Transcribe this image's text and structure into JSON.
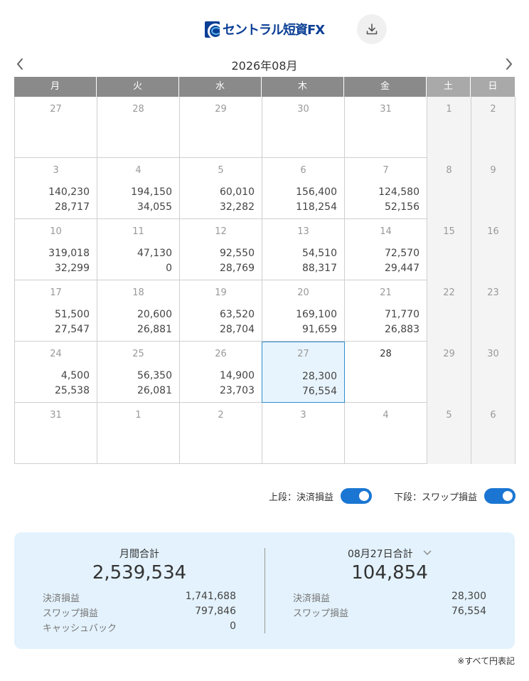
{
  "header": {
    "logo_text": "セントラル短資FX",
    "download_icon": "download-icon"
  },
  "calendar": {
    "month_title": "2026年08月",
    "prev_icon": "chevron-left-icon",
    "next_icon": "chevron-right-icon",
    "weekdays": [
      "月",
      "火",
      "水",
      "木",
      "金",
      "土",
      "日"
    ],
    "weeks": [
      [
        {
          "day": "27",
          "v1": "",
          "v2": ""
        },
        {
          "day": "28",
          "v1": "",
          "v2": ""
        },
        {
          "day": "29",
          "v1": "",
          "v2": ""
        },
        {
          "day": "30",
          "v1": "",
          "v2": ""
        },
        {
          "day": "31",
          "v1": "",
          "v2": ""
        },
        {
          "day": "1",
          "v1": "",
          "v2": ""
        },
        {
          "day": "2",
          "v1": "",
          "v2": ""
        }
      ],
      [
        {
          "day": "3",
          "v1": "140,230",
          "v2": "28,717"
        },
        {
          "day": "4",
          "v1": "194,150",
          "v2": "34,055"
        },
        {
          "day": "5",
          "v1": "60,010",
          "v2": "32,282"
        },
        {
          "day": "6",
          "v1": "156,400",
          "v2": "118,254"
        },
        {
          "day": "7",
          "v1": "124,580",
          "v2": "52,156"
        },
        {
          "day": "8",
          "v1": "",
          "v2": ""
        },
        {
          "day": "9",
          "v1": "",
          "v2": ""
        }
      ],
      [
        {
          "day": "10",
          "v1": "319,018",
          "v2": "32,299"
        },
        {
          "day": "11",
          "v1": "47,130",
          "v2": "0"
        },
        {
          "day": "12",
          "v1": "92,550",
          "v2": "28,769"
        },
        {
          "day": "13",
          "v1": "54,510",
          "v2": "88,317"
        },
        {
          "day": "14",
          "v1": "72,570",
          "v2": "29,447"
        },
        {
          "day": "15",
          "v1": "",
          "v2": ""
        },
        {
          "day": "16",
          "v1": "",
          "v2": ""
        }
      ],
      [
        {
          "day": "17",
          "v1": "51,500",
          "v2": "27,547"
        },
        {
          "day": "18",
          "v1": "20,600",
          "v2": "26,881"
        },
        {
          "day": "19",
          "v1": "63,520",
          "v2": "28,704"
        },
        {
          "day": "20",
          "v1": "169,100",
          "v2": "91,659"
        },
        {
          "day": "21",
          "v1": "71,770",
          "v2": "26,883"
        },
        {
          "day": "22",
          "v1": "",
          "v2": ""
        },
        {
          "day": "23",
          "v1": "",
          "v2": ""
        }
      ],
      [
        {
          "day": "24",
          "v1": "4,500",
          "v2": "25,538"
        },
        {
          "day": "25",
          "v1": "56,350",
          "v2": "26,081"
        },
        {
          "day": "26",
          "v1": "14,900",
          "v2": "23,703"
        },
        {
          "day": "27",
          "v1": "28,300",
          "v2": "76,554"
        },
        {
          "day": "28",
          "v1": "",
          "v2": ""
        },
        {
          "day": "29",
          "v1": "",
          "v2": ""
        },
        {
          "day": "30",
          "v1": "",
          "v2": ""
        }
      ],
      [
        {
          "day": "31",
          "v1": "",
          "v2": ""
        },
        {
          "day": "1",
          "v1": "",
          "v2": ""
        },
        {
          "day": "2",
          "v1": "",
          "v2": ""
        },
        {
          "day": "3",
          "v1": "",
          "v2": ""
        },
        {
          "day": "4",
          "v1": "",
          "v2": ""
        },
        {
          "day": "5",
          "v1": "",
          "v2": ""
        },
        {
          "day": "6",
          "v1": "",
          "v2": ""
        }
      ]
    ]
  },
  "toggles": {
    "upper_label": "上段：決済損益",
    "lower_label": "下段：スワップ損益"
  },
  "summary": {
    "monthly": {
      "title": "月間合計",
      "total": "2,539,534",
      "rows": [
        {
          "label": "決済損益",
          "value": "1,741,688"
        },
        {
          "label": "スワップ損益",
          "value": "797,846"
        },
        {
          "label": "キャッシュバック",
          "value": "0"
        }
      ]
    },
    "daily": {
      "title": "08月27日合計",
      "total": "104,854",
      "rows": [
        {
          "label": "決済損益",
          "value": "28,300"
        },
        {
          "label": "スワップ損益",
          "value": "76,554"
        }
      ]
    }
  },
  "footnote": "※すべて円表記",
  "colors": {
    "accent": "#1a76d2",
    "summary_bg": "#e3f2fc",
    "header_weekday": "#8a8a8a",
    "header_weekend": "#a9a9a9"
  }
}
